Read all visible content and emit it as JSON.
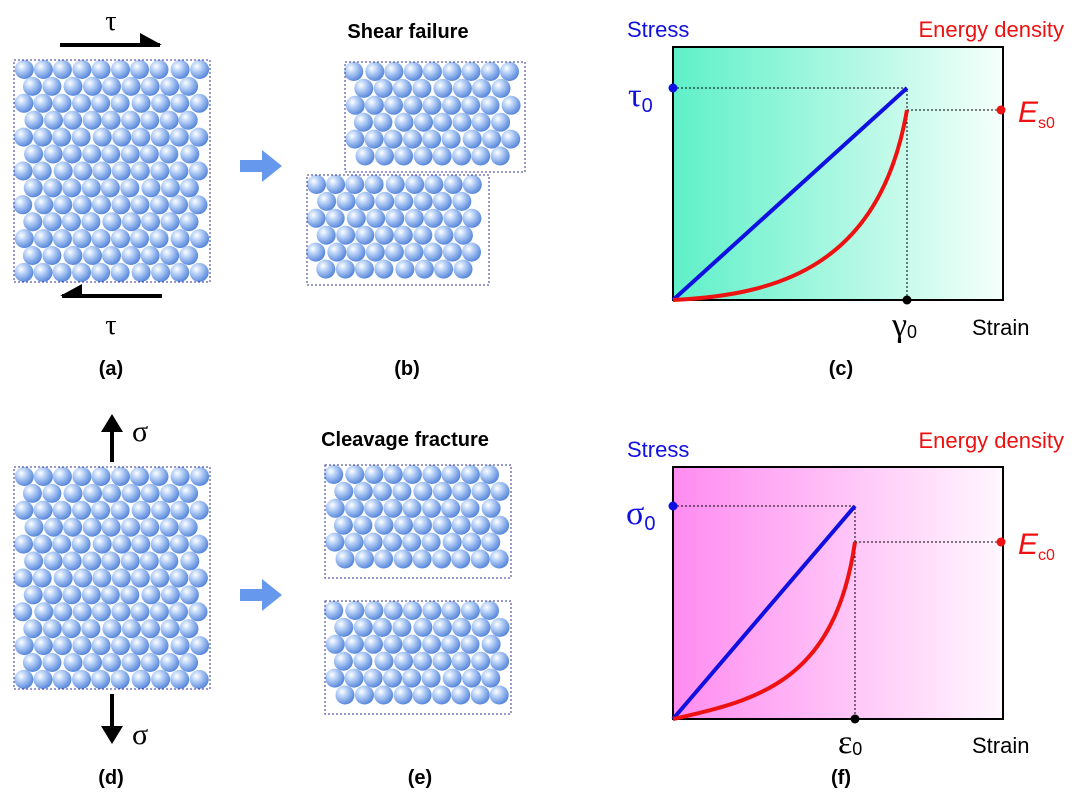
{
  "panels": {
    "a": {
      "label": "(a)",
      "top_symbol": "τ",
      "bottom_symbol": "τ"
    },
    "b": {
      "label": "(b)",
      "title": "Shear failure"
    },
    "c": {
      "label": "(c)",
      "y_left_label": "Stress",
      "y_right_label": "Energy density",
      "x_label": "Strain",
      "stress_marker": {
        "symbol": "τ",
        "subscript": "0"
      },
      "energy_marker": {
        "symbol": "E",
        "subscript": "s0"
      },
      "strain_marker": {
        "symbol": "γ",
        "subscript": "0"
      }
    },
    "d": {
      "label": "(d)",
      "top_symbol": "σ",
      "bottom_symbol": "σ"
    },
    "e": {
      "label": "(e)",
      "title": "Cleavage fracture"
    },
    "f": {
      "label": "(f)",
      "y_left_label": "Stress",
      "y_right_label": "Energy density",
      "x_label": "Strain",
      "stress_marker": {
        "symbol": "σ",
        "subscript": "0"
      },
      "energy_marker": {
        "symbol": "E",
        "subscript": "c0"
      },
      "strain_marker": {
        "symbol": "ε",
        "subscript": "0"
      }
    }
  },
  "colors": {
    "stress": "#1010e0",
    "energy": "#ee1111",
    "arrow": "#6699ee",
    "atom_light": "#ffffff",
    "atom_mid": "#9ec0f2",
    "atom_dark": "#4f80d8",
    "shear_bg": "#5ef0c8",
    "cleavage_bg": "#ff8cf0"
  }
}
